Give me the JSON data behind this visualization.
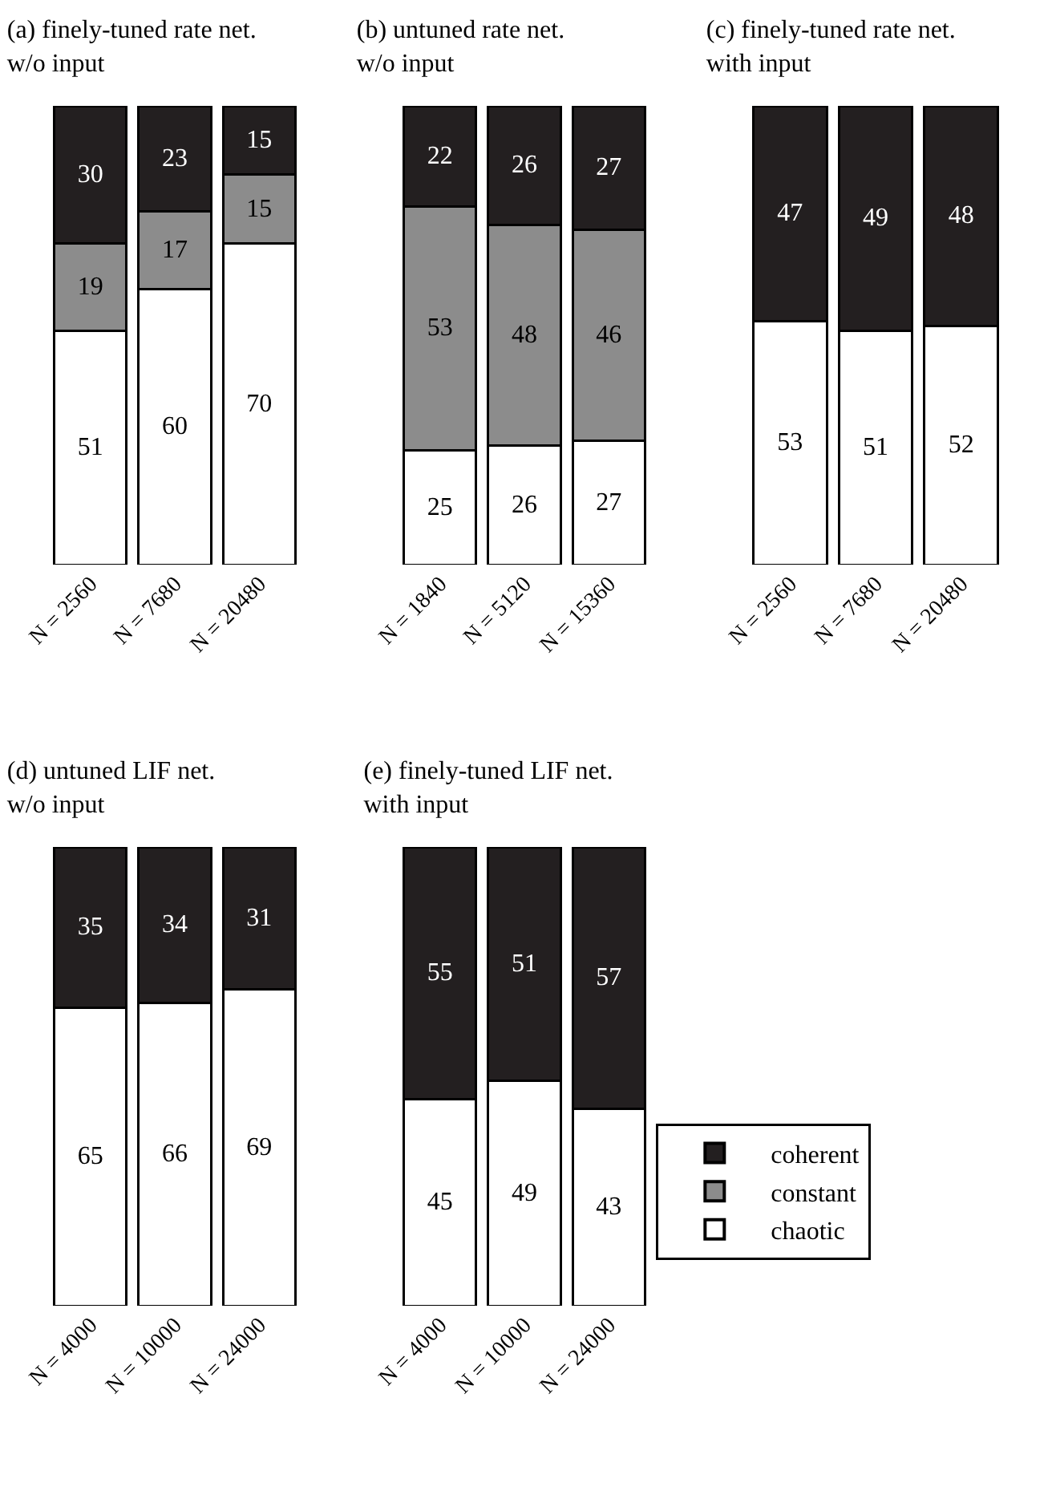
{
  "chart_data": [
    {
      "type": "bar",
      "stacked": true,
      "data_labels": true,
      "legend": false,
      "tick_labels": "x",
      "title": "(a) finely-tuned rate net.\nw/o input",
      "categories": [
        "N = 2560",
        "N = 7680",
        "N = 20480"
      ],
      "series": [
        {
          "color": "#ffffff",
          "values": [
            51,
            60,
            70
          ]
        },
        {
          "color": "#8c8c8c",
          "values": [
            19,
            17,
            15
          ]
        },
        {
          "color": "#231f20",
          "values": [
            30,
            23,
            15
          ]
        }
      ]
    },
    {
      "type": "bar",
      "stacked": true,
      "data_labels": true,
      "legend": false,
      "tick_labels": "x",
      "title": "(b) untuned rate net.\nw/o input",
      "categories": [
        "N = 1840",
        "N = 5120",
        "N = 15360"
      ],
      "series": [
        {
          "color": "#ffffff",
          "values": [
            25,
            26,
            27
          ]
        },
        {
          "color": "#8c8c8c",
          "values": [
            53,
            48,
            46
          ]
        },
        {
          "color": "#231f20",
          "values": [
            22,
            26,
            27
          ]
        }
      ]
    },
    {
      "type": "bar",
      "stacked": true,
      "data_labels": true,
      "legend": false,
      "tick_labels": "x",
      "title": "(c) finely-tuned rate net.\nwith input",
      "categories": [
        "N = 2560",
        "N = 7680",
        "N = 20480"
      ],
      "series": [
        {
          "color": "#ffffff",
          "values": [
            53,
            51,
            52
          ]
        },
        {
          "color": "#231f20",
          "values": [
            47,
            49,
            48
          ]
        }
      ]
    },
    {
      "type": "bar",
      "stacked": true,
      "data_labels": true,
      "legend": false,
      "tick_labels": "x",
      "title": "(d) untuned LIF net.\nw/o input",
      "categories": [
        "N = 4000",
        "N = 10000",
        "N = 24000"
      ],
      "series": [
        {
          "color": "#ffffff",
          "values": [
            65,
            66,
            69
          ]
        },
        {
          "color": "#231f20",
          "values": [
            35,
            34,
            31
          ]
        }
      ]
    },
    {
      "type": "bar",
      "stacked": true,
      "data_labels": true,
      "legend": "right",
      "tick_labels": "x",
      "title": "(e) finely-tuned LIF net.\nwith input",
      "categories": [
        "N = 4000",
        "N = 10000",
        "N = 24000"
      ],
      "series": [
        {
          "name": "chaotic",
          "color": "#ffffff",
          "values": [
            45,
            49,
            43
          ]
        },
        {
          "name": "constant",
          "color": "#8c8c8c",
          "values": [
            null,
            null,
            null
          ]
        },
        {
          "name": "coherent",
          "color": "#231f20",
          "values": [
            55,
            51,
            57
          ]
        }
      ]
    }
  ]
}
